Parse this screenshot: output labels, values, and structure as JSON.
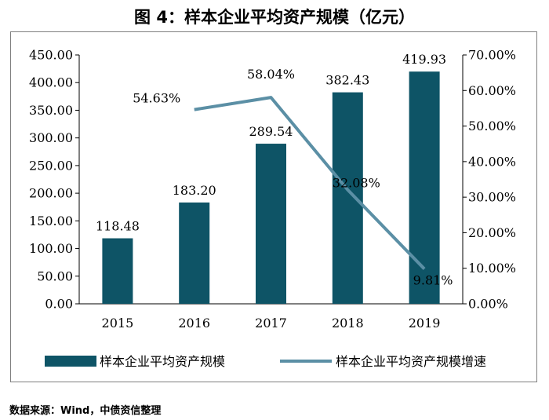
{
  "title": "图 4：样本企业平均资产规模（亿元）",
  "source": "数据来源：Wind，中债资信整理",
  "chart_data": {
    "type": "bar",
    "categories": [
      "2015",
      "2016",
      "2017",
      "2018",
      "2019"
    ],
    "series": [
      {
        "name": "样本企业平均资产规模",
        "type": "bar",
        "axis": "left",
        "values": [
          118.48,
          183.2,
          289.54,
          382.43,
          419.93
        ],
        "labels": [
          "118.48",
          "183.20",
          "289.54",
          "382.43",
          "419.93"
        ],
        "color": "#0e5466"
      },
      {
        "name": "样本企业平均资产规模增速",
        "type": "line",
        "axis": "right",
        "values": [
          null,
          54.63,
          58.04,
          32.08,
          9.81
        ],
        "labels": [
          "",
          "54.63%",
          "58.04%",
          "32.08%",
          "9.81%"
        ],
        "color": "#5b8fa5"
      }
    ],
    "y_left": {
      "range": [
        0,
        450
      ],
      "ticks": [
        "0.00",
        "50.00",
        "100.00",
        "150.00",
        "200.00",
        "250.00",
        "300.00",
        "350.00",
        "400.00",
        "450.00"
      ]
    },
    "y_right": {
      "range": [
        0,
        70
      ],
      "ticks": [
        "0.00%",
        "10.00%",
        "20.00%",
        "30.00%",
        "40.00%",
        "50.00%",
        "60.00%",
        "70.00%"
      ]
    },
    "grid": false,
    "legend_position": "bottom"
  }
}
